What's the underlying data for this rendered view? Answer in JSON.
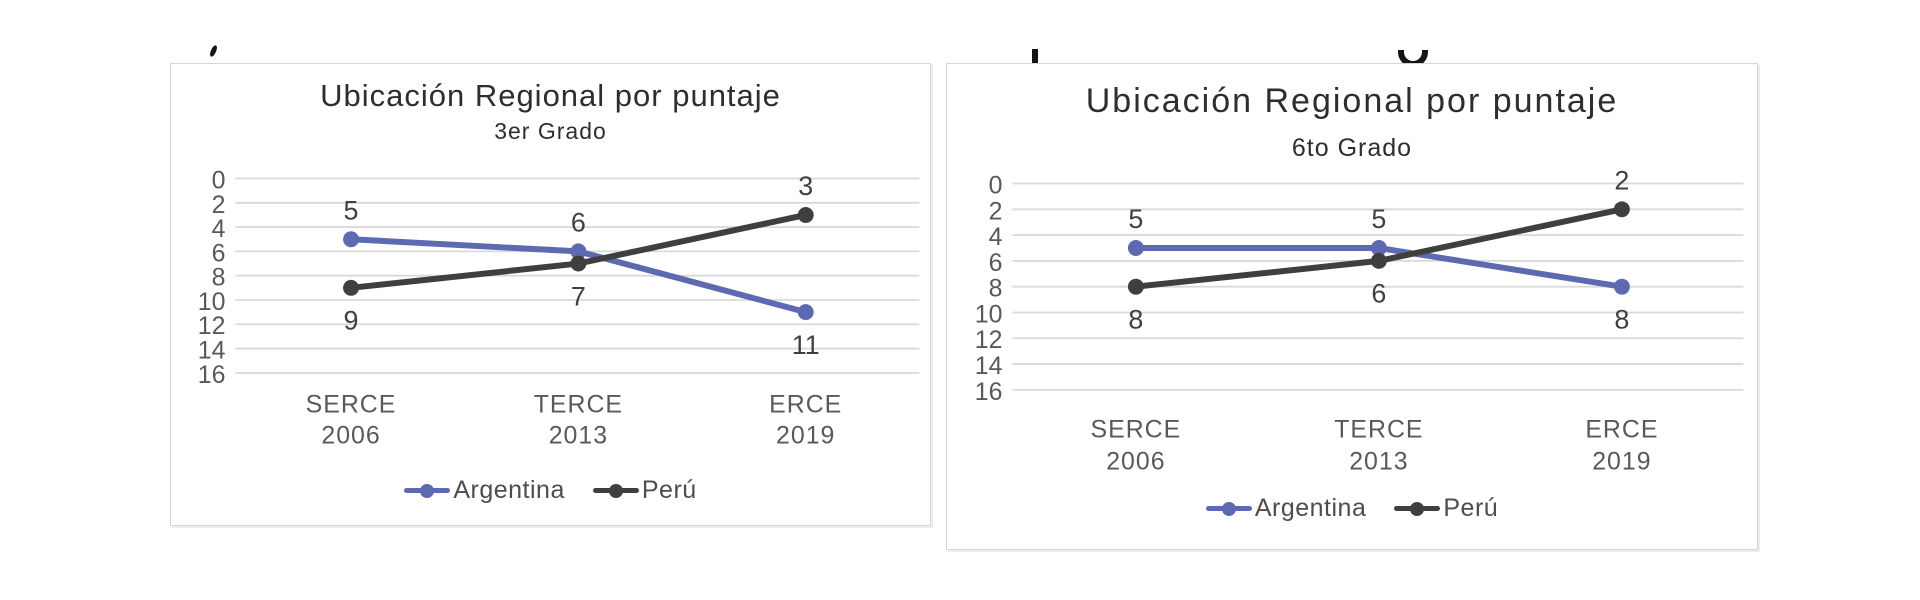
{
  "colors": {
    "background": "#ffffff",
    "panel_border": "#d6d6d6",
    "grid": "#d9d9d9",
    "axis_text": "#595959",
    "value_label_text": "#404040",
    "title_text": "#2e2e2e",
    "argentina": "#5d69b1",
    "peru": "#3f3f3f"
  },
  "chart_data": [
    {
      "type": "line",
      "title": "Ubicación Regional por puntaje",
      "subtitle": "3er Grado",
      "categories": [
        {
          "label": "SERCE",
          "sub": "2006"
        },
        {
          "label": "TERCE",
          "sub": "2013"
        },
        {
          "label": "ERCE",
          "sub": "2019"
        }
      ],
      "y_axis": {
        "min": 0,
        "max": 16,
        "ticks": [
          0,
          2,
          4,
          6,
          8,
          10,
          12,
          14,
          16
        ],
        "inverted": true,
        "grid": true
      },
      "series": [
        {
          "name": "Argentina",
          "color": "#5d69b1",
          "values": [
            5,
            6,
            11
          ]
        },
        {
          "name": "Perú",
          "color": "#3f3f3f",
          "values": [
            9,
            7,
            3
          ]
        }
      ],
      "value_labels": true,
      "legend_position": "bottom"
    },
    {
      "type": "line",
      "title": "Ubicación Regional por puntaje",
      "subtitle": "6to Grado",
      "categories": [
        {
          "label": "SERCE",
          "sub": "2006"
        },
        {
          "label": "TERCE",
          "sub": "2013"
        },
        {
          "label": "ERCE",
          "sub": "2019"
        }
      ],
      "y_axis": {
        "min": 0,
        "max": 16,
        "ticks": [
          0,
          2,
          4,
          6,
          8,
          10,
          12,
          14,
          16
        ],
        "inverted": true,
        "grid": true
      },
      "series": [
        {
          "name": "Argentina",
          "color": "#5d69b1",
          "values": [
            5,
            5,
            8
          ]
        },
        {
          "name": "Perú",
          "color": "#3f3f3f",
          "values": [
            8,
            6,
            2
          ]
        }
      ],
      "value_labels": true,
      "legend_position": "bottom"
    }
  ]
}
